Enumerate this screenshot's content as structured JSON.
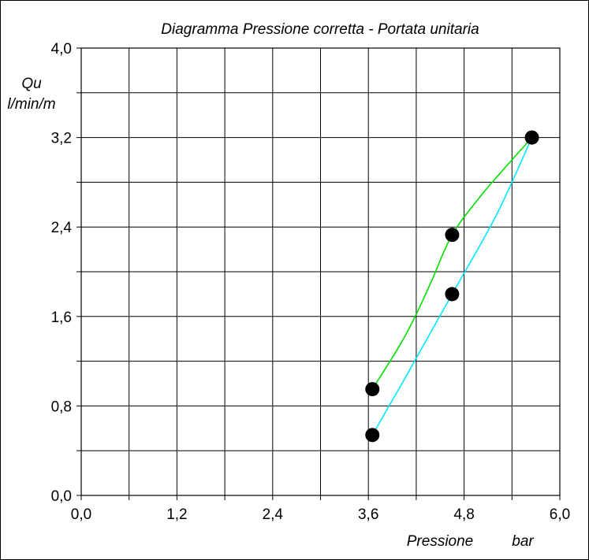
{
  "chart_data": {
    "type": "line",
    "title": "Diagramma  Pressione corretta - Portata unitaria",
    "xlabel": "Pressione",
    "xunit": "bar",
    "ylabel": "Qu",
    "yunit": "l/min/m",
    "xlim": [
      0,
      6.0
    ],
    "ylim": [
      0,
      4.0
    ],
    "x_ticks": [
      0,
      1.2,
      2.4,
      3.6,
      4.8,
      6.0
    ],
    "x_tick_labels": [
      "0,0",
      "1,2",
      "2,4",
      "3,6",
      "4,8",
      "6,0"
    ],
    "y_ticks": [
      0,
      0.8,
      1.6,
      2.4,
      3.2,
      4.0
    ],
    "y_tick_labels": [
      "0,0",
      "0,8",
      "1,6",
      "2,4",
      "3,2",
      "4,0"
    ],
    "x_grid_minor": 0.6,
    "y_grid_minor": 0.4,
    "grid": true,
    "series": [
      {
        "color": "#00e000",
        "x": [
          3.65,
          4.0,
          4.2,
          4.4,
          4.65,
          5.0,
          5.3,
          5.65
        ],
        "y": [
          0.95,
          1.35,
          1.62,
          1.93,
          2.33,
          2.67,
          2.92,
          3.2
        ]
      },
      {
        "color": "#00e8ff",
        "x": [
          3.65,
          4.1,
          4.65,
          5.2,
          5.65
        ],
        "y": [
          0.54,
          1.1,
          1.8,
          2.5,
          3.2
        ]
      }
    ],
    "points": [
      {
        "x": 3.65,
        "y": 0.95
      },
      {
        "x": 3.65,
        "y": 0.54
      },
      {
        "x": 4.65,
        "y": 2.33
      },
      {
        "x": 4.65,
        "y": 1.8
      },
      {
        "x": 5.65,
        "y": 3.2
      }
    ]
  }
}
